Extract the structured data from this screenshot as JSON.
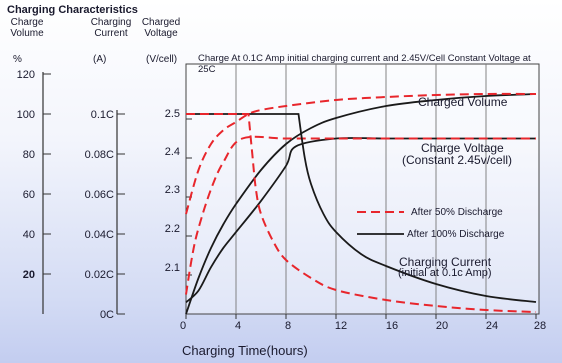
{
  "title": "Charging Characteristics",
  "headers": {
    "volume": [
      "Charge",
      "Volume"
    ],
    "current": [
      "Charging",
      "Current"
    ],
    "voltage": [
      "Charged",
      "Voltage"
    ]
  },
  "units": {
    "volume": "%",
    "current": "(A)",
    "voltage": "(V/cell)"
  },
  "axes": {
    "volume_ticks": [
      "120",
      "100",
      "80",
      "60",
      "40",
      "20"
    ],
    "current_ticks": [
      "0.1C",
      "0.08C",
      "0.06C",
      "0.04C",
      "0.02C",
      "0C"
    ],
    "voltage_ticks": [
      "2.5",
      "2.4",
      "2.3",
      "2.2",
      "2.1"
    ],
    "x_ticks": [
      "0",
      "4",
      "8",
      "12",
      "16",
      "20",
      "24",
      "28"
    ],
    "x_title": "Charging Time(hours)"
  },
  "note": "Charge At 0.1C Amp initial charging current  and 2.45V/Cell Constant Voltage  at 25C",
  "labels": {
    "charged_volume": "Charged Volume",
    "charge_voltage_1": "Charge Voltage",
    "charge_voltage_2": "(Constant 2.45v/cell)",
    "charging_current_1": "Charging Current",
    "charging_current_2": "(initial at 0.1c Amp)"
  },
  "legend": {
    "after50": "After 50% Discharge",
    "after100": "After 100% Discharge"
  },
  "colors": {
    "after50": "#e8262c",
    "after100": "#1a1a1a",
    "grid": "#777777"
  },
  "chart_data": {
    "type": "line",
    "title": "Charging Characteristics",
    "xlabel": "Charging Time(hours)",
    "xlim": [
      0,
      28
    ],
    "ylim_voltage": [
      2.0,
      2.6
    ],
    "series": [
      {
        "name": "After 100% Discharge",
        "quantity": "Charged Volume",
        "unit": "%",
        "x": [
          0,
          1,
          2,
          3,
          4,
          6,
          8,
          10,
          12,
          16,
          20,
          24,
          28
        ],
        "y": [
          0,
          18,
          33,
          45,
          55,
          72,
          85,
          93,
          98,
          104,
          107,
          109,
          110
        ]
      },
      {
        "name": "After 50% Discharge",
        "quantity": "Charged Volume",
        "unit": "%",
        "x": [
          0,
          1,
          2,
          3,
          4,
          5,
          6,
          8,
          12,
          16,
          20,
          24,
          28
        ],
        "y": [
          50,
          72,
          85,
          92,
          96,
          100,
          102,
          104,
          107,
          108.5,
          109.5,
          110,
          110
        ]
      },
      {
        "name": "After 100% Discharge",
        "quantity": "Charge Voltage",
        "unit": "V/cell",
        "x": [
          0,
          1,
          2,
          3,
          4,
          6,
          8,
          8.8,
          12,
          16,
          20,
          24,
          28
        ],
        "y": [
          2.03,
          2.06,
          2.12,
          2.17,
          2.21,
          2.29,
          2.38,
          2.43,
          2.45,
          2.45,
          2.45,
          2.45,
          2.45
        ]
      },
      {
        "name": "After 50% Discharge",
        "quantity": "Charge Voltage",
        "unit": "V/cell",
        "x": [
          0,
          0.5,
          1,
          2,
          3,
          4.5,
          8,
          12,
          16,
          20,
          24,
          28
        ],
        "y": [
          2.05,
          2.15,
          2.22,
          2.32,
          2.39,
          2.45,
          2.45,
          2.45,
          2.45,
          2.45,
          2.45,
          2.45
        ]
      },
      {
        "name": "After 100% Discharge",
        "quantity": "Charging Current",
        "unit": "C",
        "x": [
          0,
          9,
          9.5,
          10,
          11,
          12,
          14,
          16,
          20,
          24,
          28
        ],
        "y": [
          0.1,
          0.1,
          0.078,
          0.065,
          0.05,
          0.041,
          0.03,
          0.024,
          0.015,
          0.009,
          0.006
        ]
      },
      {
        "name": "After 50% Discharge",
        "quantity": "Charging Current",
        "unit": "C",
        "x": [
          0,
          5,
          5.3,
          5.6,
          6,
          7,
          8,
          10,
          12,
          16,
          20,
          24,
          28
        ],
        "y": [
          0.1,
          0.1,
          0.08,
          0.062,
          0.05,
          0.036,
          0.027,
          0.018,
          0.012,
          0.007,
          0.004,
          0.002,
          0.001
        ]
      }
    ]
  }
}
